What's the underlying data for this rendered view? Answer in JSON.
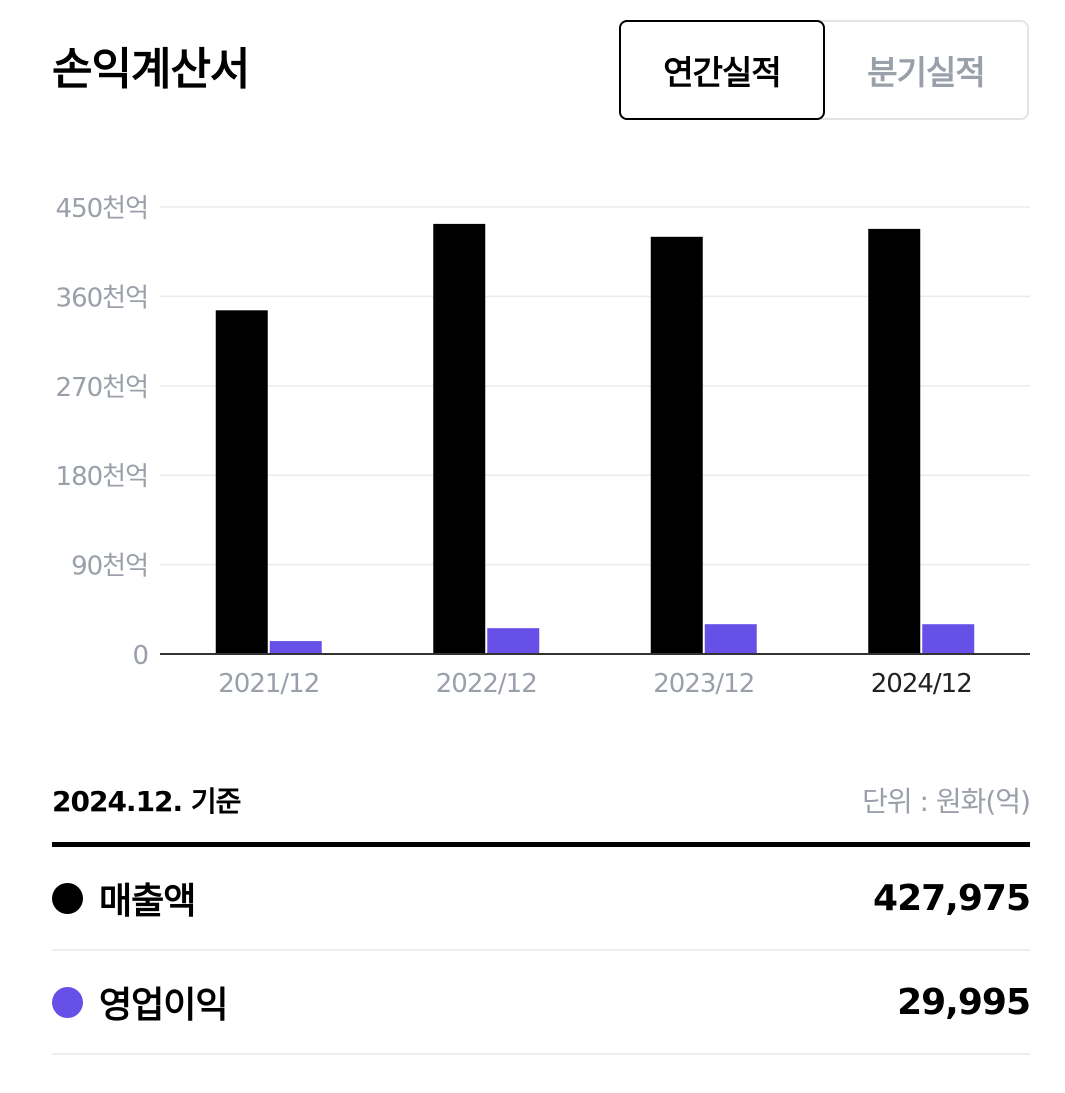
{
  "header": {
    "title": "손익계산서",
    "tabs": [
      {
        "label": "연간실적",
        "active": true
      },
      {
        "label": "분기실적",
        "active": false
      }
    ]
  },
  "colors": {
    "revenue": "#000000",
    "operating_profit": "#6650e8",
    "axis_text": "#9aa0aa",
    "grid": "#e9ebee"
  },
  "chart_data": {
    "type": "bar",
    "categories": [
      "2021/12",
      "2022/12",
      "2023/12",
      "2024/12"
    ],
    "highlight_category": "2024/12",
    "y_ticks": [
      {
        "value": 0,
        "label": "0"
      },
      {
        "value": 90000,
        "label": "90천억"
      },
      {
        "value": 180000,
        "label": "180천억"
      },
      {
        "value": 270000,
        "label": "270천억"
      },
      {
        "value": 360000,
        "label": "360천억"
      },
      {
        "value": 450000,
        "label": "450천억"
      }
    ],
    "ylim": [
      0,
      450000
    ],
    "grid": true,
    "series": [
      {
        "name": "매출액",
        "color": "#000000",
        "values": [
          346000,
          433000,
          420000,
          427975
        ]
      },
      {
        "name": "영업이익",
        "color": "#6650e8",
        "values": [
          13000,
          26000,
          30000,
          29995
        ]
      }
    ]
  },
  "summary": {
    "basis": "2024.12. 기준",
    "unit": "단위 : 원화(억)",
    "rows": [
      {
        "label": "매출액",
        "value": "427,975",
        "color": "#000000"
      },
      {
        "label": "영업이익",
        "value": "29,995",
        "color": "#6650e8"
      }
    ]
  }
}
